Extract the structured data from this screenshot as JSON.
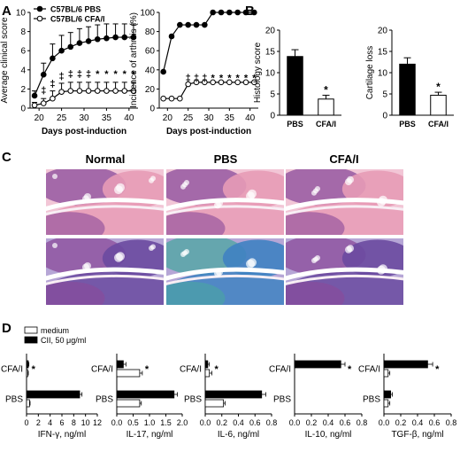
{
  "panels": {
    "A": "A",
    "B": "B",
    "C": "C",
    "D": "D"
  },
  "histology": {
    "columns": [
      "Normal",
      "PBS",
      "CFA/I"
    ],
    "stains": [
      "H&E",
      "toluidine-blue"
    ],
    "colors": {
      "he_pink": "#e79bb6",
      "he_purple": "#8a4a9a",
      "tb_blue": "#3f82c2",
      "tb_purple": "#6a4aa0",
      "tb_teal": "#4aa6a0"
    }
  },
  "chart_data": [
    {
      "id": "A1",
      "type": "line",
      "title": "",
      "xlabel": "Days post-induction",
      "ylabel": "Average clinical score",
      "xlim": [
        18,
        42
      ],
      "ylim": [
        0,
        10
      ],
      "xticks": [
        "20",
        "25",
        "30",
        "35",
        "40"
      ],
      "yticks": [
        "0",
        "2",
        "4",
        "6",
        "8",
        "10"
      ],
      "legend": "top-left",
      "series": [
        {
          "name": "C57BL/6 PBS",
          "marker": "filled-circle",
          "x": [
            19,
            21,
            23,
            25,
            27,
            29,
            31,
            33,
            35,
            37,
            39,
            41
          ],
          "y": [
            1.3,
            3.5,
            5.2,
            6.0,
            6.4,
            6.8,
            7.0,
            7.2,
            7.3,
            7.4,
            7.4,
            7.4
          ],
          "err": [
            0.5,
            1.2,
            1.5,
            1.6,
            1.5,
            1.5,
            1.5,
            1.5,
            1.5,
            1.4,
            1.4,
            1.4
          ]
        },
        {
          "name": "C57BL/6 CFA/I",
          "marker": "open-circle",
          "x": [
            19,
            21,
            23,
            25,
            27,
            29,
            31,
            33,
            35,
            37,
            39,
            41
          ],
          "y": [
            0.3,
            0.5,
            1.0,
            1.7,
            1.8,
            1.8,
            1.8,
            1.8,
            1.8,
            1.8,
            1.8,
            1.8
          ],
          "err": [
            0.3,
            0.5,
            0.8,
            0.9,
            0.9,
            0.9,
            0.9,
            0.9,
            0.9,
            0.9,
            0.9,
            0.9
          ]
        }
      ],
      "annotations": [
        {
          "x": 21,
          "y": 1.8,
          "label": "‡"
        },
        {
          "x": 23,
          "y": 2.5,
          "label": "‡"
        },
        {
          "x": 25,
          "y": 3.3,
          "label": "‡"
        },
        {
          "x": 27,
          "y": 3.5,
          "label": "‡"
        },
        {
          "x": 29,
          "y": 3.5,
          "label": "‡"
        },
        {
          "x": 31,
          "y": 3.5,
          "label": "‡"
        },
        {
          "x": 33,
          "y": 3.5,
          "label": "*"
        },
        {
          "x": 35,
          "y": 3.5,
          "label": "*"
        },
        {
          "x": 37,
          "y": 3.5,
          "label": "*"
        },
        {
          "x": 39,
          "y": 3.5,
          "label": "*"
        },
        {
          "x": 41,
          "y": 3.5,
          "label": "*"
        }
      ]
    },
    {
      "id": "A2",
      "type": "line",
      "title": "",
      "xlabel": "Days post-induction",
      "ylabel": "Incidence of arthritis (%)",
      "xlim": [
        18,
        42
      ],
      "ylim": [
        0,
        100
      ],
      "xticks": [
        "20",
        "25",
        "30",
        "35",
        "40"
      ],
      "yticks": [
        "0",
        "20",
        "40",
        "60",
        "80",
        "100"
      ],
      "series": [
        {
          "name": "C57BL/6 PBS",
          "marker": "filled-circle",
          "x": [
            19,
            21,
            23,
            25,
            27,
            29,
            31,
            33,
            35,
            37,
            39,
            41
          ],
          "y": [
            38,
            75,
            87,
            87,
            87,
            87,
            100,
            100,
            100,
            100,
            100,
            100
          ]
        },
        {
          "name": "C57BL/6 CFA/I",
          "marker": "open-circle",
          "x": [
            19,
            21,
            23,
            25,
            27,
            29,
            31,
            33,
            35,
            37,
            39,
            41
          ],
          "y": [
            10,
            10,
            10,
            25,
            27,
            27,
            27,
            27,
            27,
            27,
            27,
            27
          ]
        }
      ],
      "annotations": [
        {
          "x": 25,
          "y": 31,
          "label": "‡"
        },
        {
          "x": 27,
          "y": 31,
          "label": "‡"
        },
        {
          "x": 29,
          "y": 31,
          "label": "‡"
        },
        {
          "x": 31,
          "y": 31,
          "label": "*"
        },
        {
          "x": 33,
          "y": 31,
          "label": "*"
        },
        {
          "x": 35,
          "y": 31,
          "label": "*"
        },
        {
          "x": 37,
          "y": 31,
          "label": "*"
        },
        {
          "x": 39,
          "y": 31,
          "label": "*"
        },
        {
          "x": 41,
          "y": 31,
          "label": "*"
        }
      ]
    },
    {
      "id": "B1",
      "type": "bar",
      "title": "",
      "xlabel": "",
      "ylabel": "Histology score",
      "ylim": [
        0,
        20
      ],
      "yticks": [
        "0",
        "5",
        "10",
        "15",
        "20"
      ],
      "categories": [
        "PBS",
        "CFA/I"
      ],
      "values": [
        13.8,
        3.8
      ],
      "err": [
        1.6,
        0.9
      ],
      "fills": [
        "black",
        "white"
      ],
      "annotations": [
        {
          "category": "CFA/I",
          "label": "*"
        }
      ]
    },
    {
      "id": "B2",
      "type": "bar",
      "title": "",
      "xlabel": "",
      "ylabel": "Cartilage loss",
      "ylim": [
        0,
        20
      ],
      "yticks": [
        "0",
        "5",
        "10",
        "15",
        "20"
      ],
      "categories": [
        "PBS",
        "CFA/I"
      ],
      "values": [
        12.0,
        4.7
      ],
      "err": [
        1.5,
        0.7
      ],
      "fills": [
        "black",
        "white"
      ],
      "annotations": [
        {
          "category": "CFA/I",
          "label": "*"
        }
      ]
    },
    {
      "id": "D1",
      "type": "bar",
      "orientation": "horizontal",
      "xlabel": "IFN-γ, ng/ml",
      "xlim": [
        0,
        12
      ],
      "xticks": [
        "0",
        "2",
        "4",
        "6",
        "8",
        "10",
        "12"
      ],
      "categories": [
        "CFA/I",
        "PBS"
      ],
      "legend": "top-left",
      "series": [
        {
          "name": "medium",
          "fill": "white",
          "values": [
            0.2,
            0.5
          ],
          "err": [
            0.1,
            0.1
          ]
        },
        {
          "name": "CII, 50 μg/ml",
          "fill": "black",
          "values": [
            0.3,
            9.0
          ],
          "err": [
            0.1,
            0.4
          ]
        }
      ],
      "annotations": [
        {
          "category": "CFA/I",
          "label": "*"
        }
      ]
    },
    {
      "id": "D2",
      "type": "bar",
      "orientation": "horizontal",
      "xlabel": "IL-17, ng/ml",
      "xlim": [
        0,
        2.0
      ],
      "xticks": [
        "0.0",
        "0.5",
        "1.0",
        "1.5",
        "2.0"
      ],
      "categories": [
        "CFA/I",
        "PBS"
      ],
      "series": [
        {
          "name": "medium",
          "fill": "white",
          "values": [
            0.7,
            0.7
          ],
          "err": [
            0.08,
            0.05
          ]
        },
        {
          "name": "CII, 50 μg/ml",
          "fill": "black",
          "values": [
            0.2,
            1.75
          ],
          "err": [
            0.08,
            0.1
          ]
        }
      ],
      "annotations": [
        {
          "category": "CFA/I",
          "label": "*"
        }
      ]
    },
    {
      "id": "D3",
      "type": "bar",
      "orientation": "horizontal",
      "xlabel": "IL-6, ng/ml",
      "xlim": [
        0,
        0.8
      ],
      "xticks": [
        "0.0",
        "0.2",
        "0.4",
        "0.6",
        "0.8"
      ],
      "categories": [
        "CFA/I",
        "PBS"
      ],
      "series": [
        {
          "name": "medium",
          "fill": "white",
          "values": [
            0.05,
            0.22
          ],
          "err": [
            0.03,
            0.02
          ]
        },
        {
          "name": "CII, 50 μg/ml",
          "fill": "black",
          "values": [
            0.03,
            0.68
          ],
          "err": [
            0.02,
            0.05
          ]
        }
      ],
      "annotations": [
        {
          "category": "CFA/I",
          "label": "*"
        }
      ]
    },
    {
      "id": "D4",
      "type": "bar",
      "orientation": "horizontal",
      "xlabel": "IL-10, ng/ml",
      "xlim": [
        0,
        0.8
      ],
      "xticks": [
        "0.0",
        "0.2",
        "0.4",
        "0.6",
        "0.8"
      ],
      "categories": [
        "CFA/I",
        "PBS"
      ],
      "series": [
        {
          "name": "medium",
          "fill": "white",
          "values": [
            0.0,
            0.0
          ],
          "err": [
            0,
            0
          ]
        },
        {
          "name": "CII, 50 μg/ml",
          "fill": "black",
          "values": [
            0.55,
            0.0
          ],
          "err": [
            0.05,
            0
          ]
        }
      ],
      "annotations": [
        {
          "category": "CFA/I",
          "label": "*"
        }
      ]
    },
    {
      "id": "D5",
      "type": "bar",
      "orientation": "horizontal",
      "xlabel": "TGF-β, ng/ml",
      "xlim": [
        0,
        0.8
      ],
      "xticks": [
        "0.0",
        "0.2",
        "0.4",
        "0.6",
        "0.8"
      ],
      "categories": [
        "CFA/I",
        "PBS"
      ],
      "series": [
        {
          "name": "medium",
          "fill": "white",
          "values": [
            0.05,
            0.05
          ],
          "err": [
            0.02,
            0.02
          ]
        },
        {
          "name": "CII, 50 μg/ml",
          "fill": "black",
          "values": [
            0.52,
            0.08
          ],
          "err": [
            0.06,
            0.02
          ]
        }
      ],
      "annotations": [
        {
          "category": "CFA/I",
          "label": "*"
        }
      ]
    }
  ]
}
